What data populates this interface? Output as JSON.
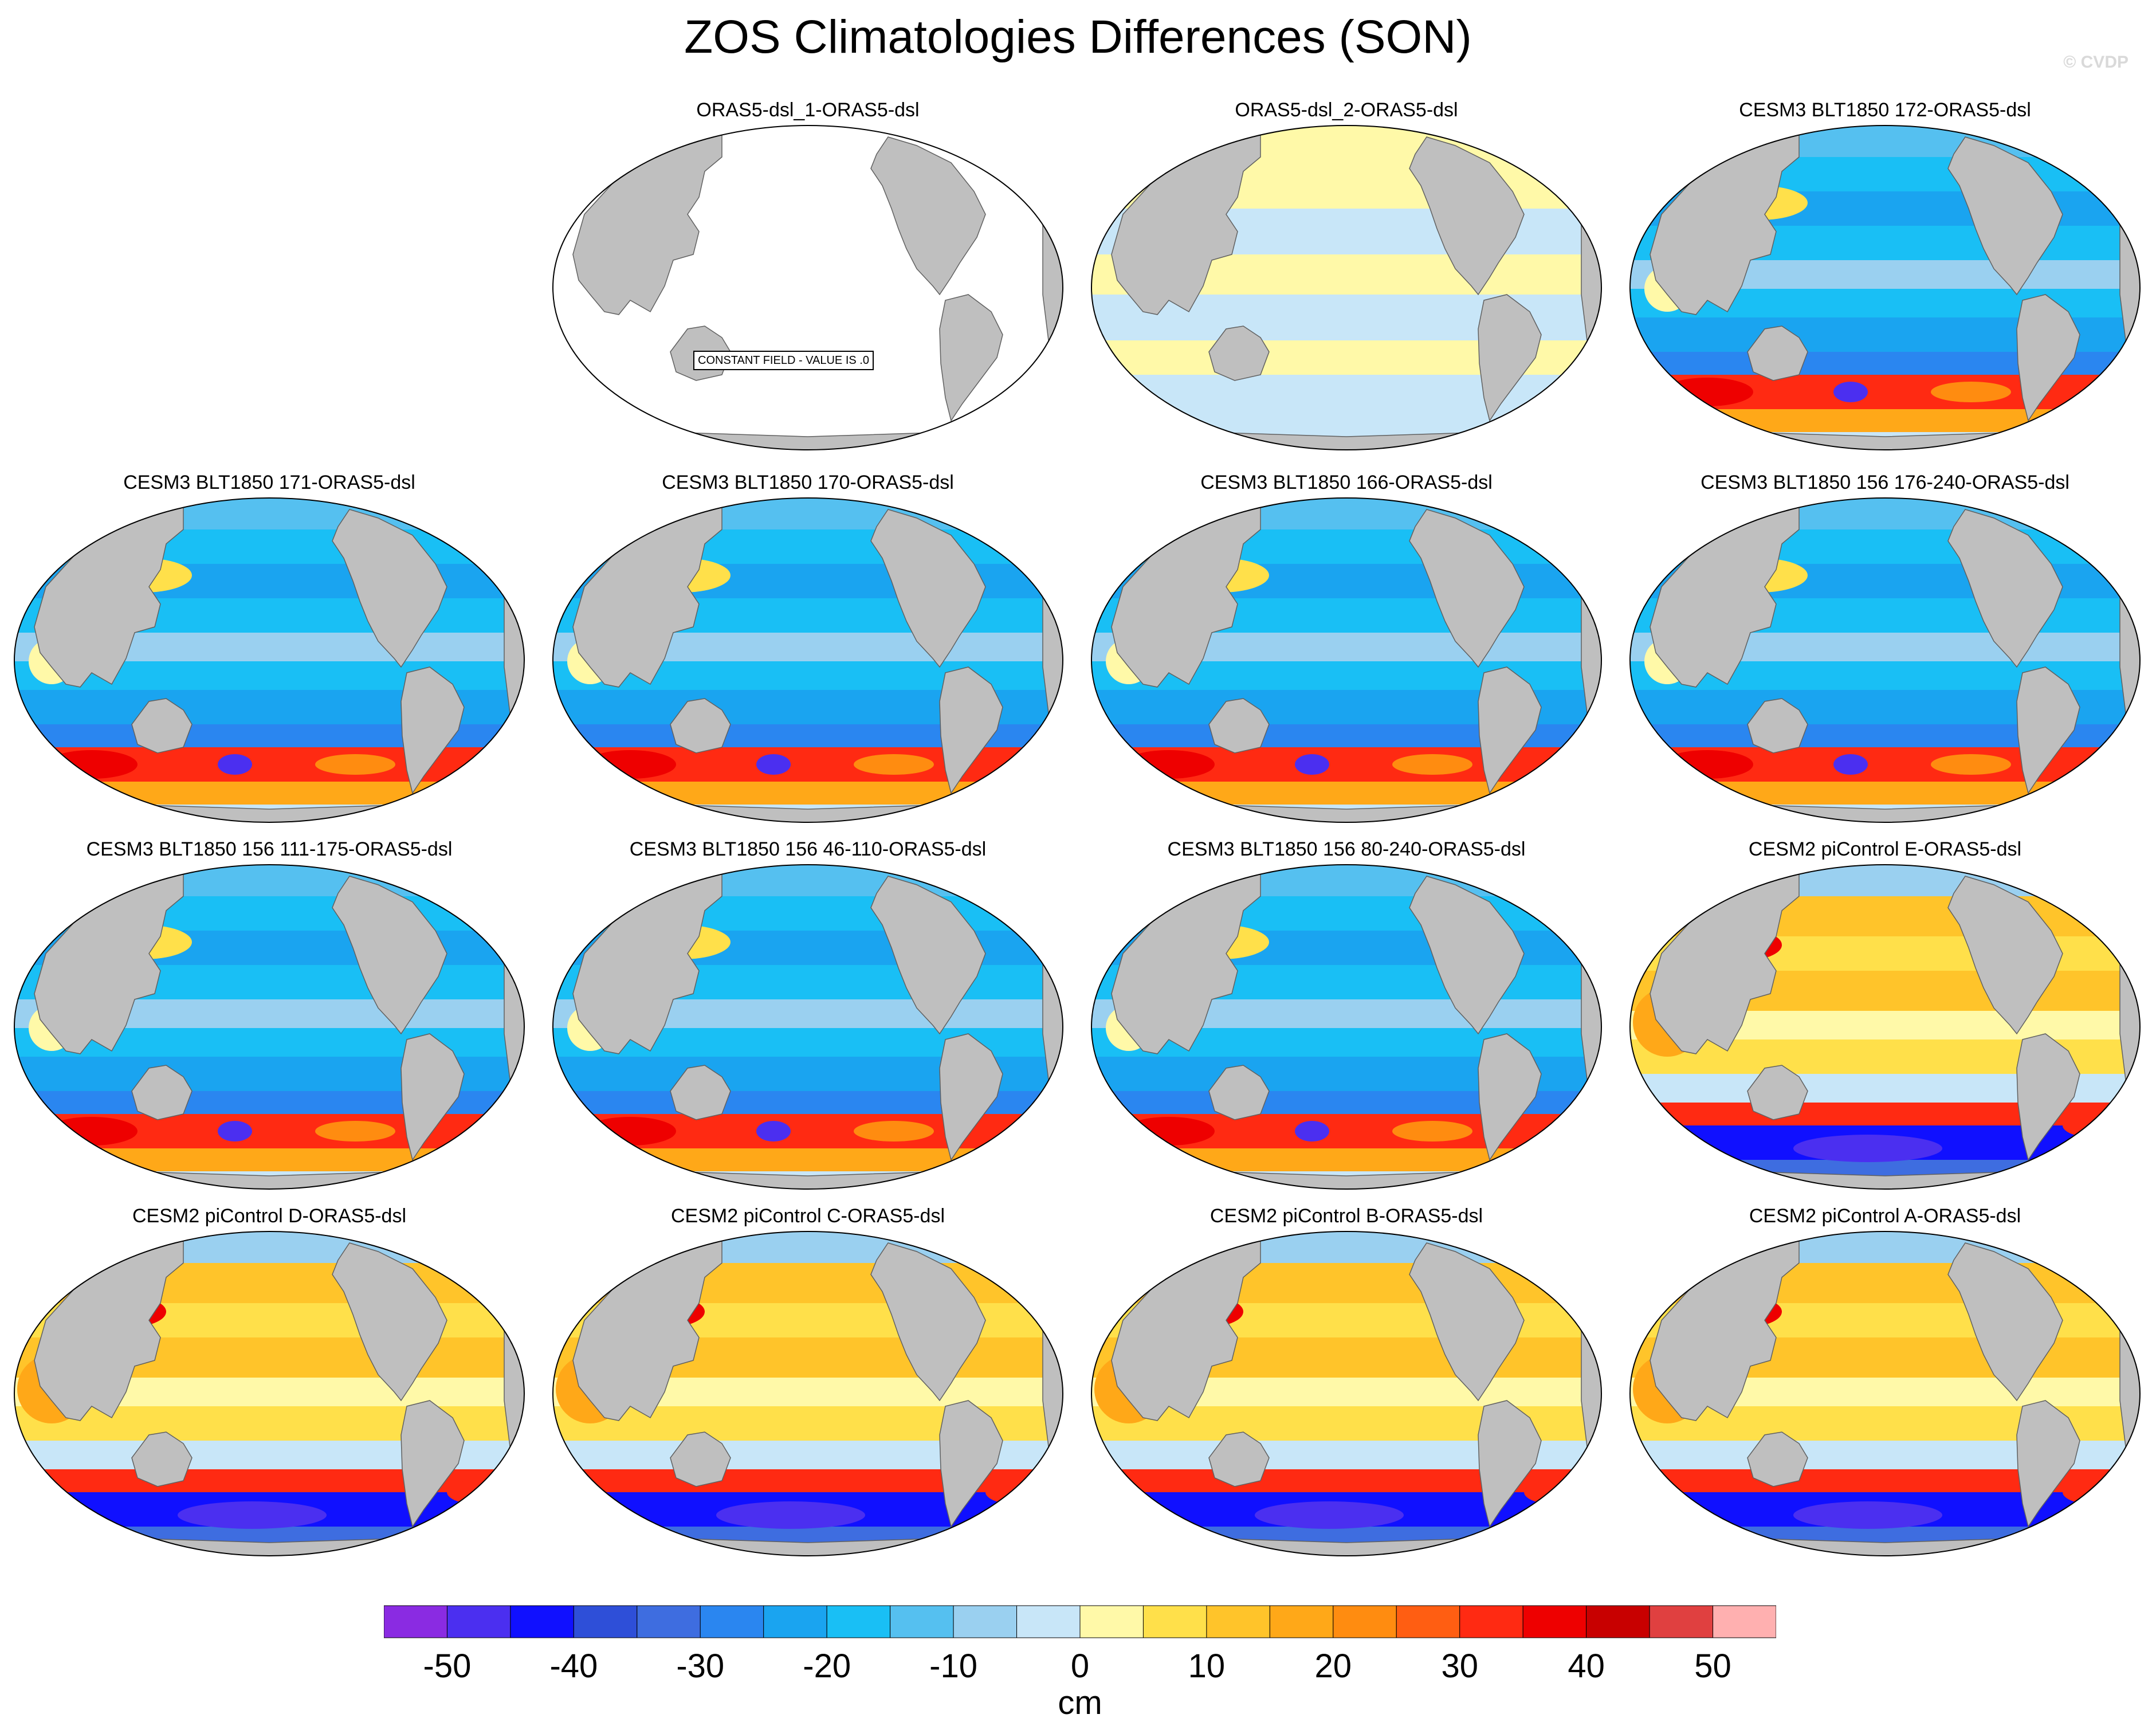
{
  "title": "ZOS Climatologies Differences (SON)",
  "watermark": "© CVDP",
  "panels": [
    {
      "title": "ORAS5-dsl_1-ORAS5-dsl",
      "variant": "constant",
      "note": "CONSTANT FIELD - VALUE IS .0"
    },
    {
      "title": "ORAS5-dsl_2-ORAS5-dsl",
      "variant": "small"
    },
    {
      "title": "CESM3 BLT1850 172-ORAS5-dsl",
      "variant": "cesm3"
    },
    {
      "title": "CESM3 BLT1850 171-ORAS5-dsl",
      "variant": "cesm3"
    },
    {
      "title": "CESM3 BLT1850 170-ORAS5-dsl",
      "variant": "cesm3"
    },
    {
      "title": "CESM3 BLT1850 166-ORAS5-dsl",
      "variant": "cesm3"
    },
    {
      "title": "CESM3 BLT1850 156 176-240-ORAS5-dsl",
      "variant": "cesm3"
    },
    {
      "title": "CESM3 BLT1850 156 111-175-ORAS5-dsl",
      "variant": "cesm3"
    },
    {
      "title": "CESM3 BLT1850 156 46-110-ORAS5-dsl",
      "variant": "cesm3"
    },
    {
      "title": "CESM3 BLT1850 156 80-240-ORAS5-dsl",
      "variant": "cesm3"
    },
    {
      "title": "CESM2 piControl E-ORAS5-dsl",
      "variant": "cesm2"
    },
    {
      "title": "CESM2 piControl D-ORAS5-dsl",
      "variant": "cesm2"
    },
    {
      "title": "CESM2 piControl C-ORAS5-dsl",
      "variant": "cesm2"
    },
    {
      "title": "CESM2 piControl B-ORAS5-dsl",
      "variant": "cesm2"
    },
    {
      "title": "CESM2 piControl A-ORAS5-dsl",
      "variant": "cesm2"
    }
  ],
  "colorbar": {
    "unit": "cm",
    "tick_labels": [
      "-50",
      "-40",
      "-30",
      "-20",
      "-10",
      "0",
      "10",
      "20",
      "30",
      "40",
      "50"
    ],
    "colors": [
      "#8a2be2",
      "#4b2ff0",
      "#1010ff",
      "#2e4fd8",
      "#3e6de0",
      "#2a86f0",
      "#1aa4f0",
      "#19bff5",
      "#55c0f0",
      "#9ad0f0",
      "#c8e6f8",
      "#fff9a8",
      "#ffe04a",
      "#ffc42a",
      "#ffa818",
      "#ff8c10",
      "#ff5e12",
      "#ff2a12",
      "#ee0000",
      "#c80000",
      "#e04040",
      "#ffb0b0"
    ]
  },
  "map_colors": {
    "land": "#bfbfbf",
    "ocean_constant": "#ffffff"
  }
}
